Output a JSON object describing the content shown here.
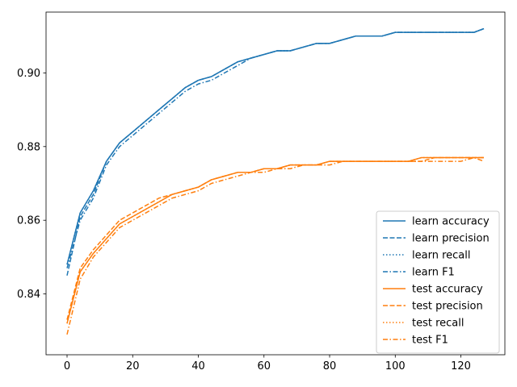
{
  "chart_data": {
    "type": "line",
    "title": "",
    "xlabel": "",
    "ylabel": "",
    "xlim": [
      -6.4,
      133.4
    ],
    "ylim": [
      0.8235,
      0.9165
    ],
    "x_ticks": [
      0,
      20,
      40,
      60,
      80,
      100,
      120
    ],
    "x_tick_labels": [
      "0",
      "20",
      "40",
      "60",
      "80",
      "100",
      "120"
    ],
    "y_ticks": [
      0.84,
      0.86,
      0.88,
      0.9
    ],
    "y_tick_labels": [
      "0.84",
      "0.86",
      "0.88",
      "0.90"
    ],
    "grid": false,
    "legend_position": "lower-right",
    "x": [
      0,
      4,
      8,
      12,
      16,
      20,
      24,
      28,
      32,
      36,
      40,
      44,
      48,
      52,
      56,
      60,
      64,
      68,
      72,
      76,
      80,
      84,
      88,
      92,
      96,
      100,
      104,
      108,
      112,
      116,
      120,
      124,
      127
    ],
    "series": [
      {
        "name": "learn accuracy",
        "color": "#1f77b4",
        "style": "solid",
        "values": [
          0.848,
          0.862,
          0.868,
          0.876,
          0.881,
          0.884,
          0.887,
          0.89,
          0.893,
          0.896,
          0.898,
          0.899,
          0.901,
          0.903,
          0.904,
          0.905,
          0.906,
          0.906,
          0.907,
          0.908,
          0.908,
          0.909,
          0.91,
          0.91,
          0.91,
          0.911,
          0.911,
          0.911,
          0.911,
          0.911,
          0.911,
          0.911,
          0.912
        ]
      },
      {
        "name": "learn precision",
        "color": "#1f77b4",
        "style": "dashed",
        "values": [
          0.845,
          0.861,
          0.867,
          0.876,
          0.881,
          0.884,
          0.887,
          0.89,
          0.893,
          0.896,
          0.898,
          0.899,
          0.901,
          0.903,
          0.904,
          0.905,
          0.906,
          0.906,
          0.907,
          0.908,
          0.908,
          0.909,
          0.91,
          0.91,
          0.91,
          0.911,
          0.911,
          0.911,
          0.911,
          0.911,
          0.911,
          0.911,
          0.912
        ]
      },
      {
        "name": "learn recall",
        "color": "#1f77b4",
        "style": "dotted",
        "values": [
          0.848,
          0.862,
          0.868,
          0.876,
          0.881,
          0.884,
          0.887,
          0.89,
          0.893,
          0.896,
          0.898,
          0.899,
          0.901,
          0.903,
          0.904,
          0.905,
          0.906,
          0.906,
          0.907,
          0.908,
          0.908,
          0.909,
          0.91,
          0.91,
          0.91,
          0.911,
          0.911,
          0.911,
          0.911,
          0.911,
          0.911,
          0.911,
          0.912
        ]
      },
      {
        "name": "learn F1",
        "color": "#1f77b4",
        "style": "dashdot",
        "values": [
          0.847,
          0.86,
          0.866,
          0.875,
          0.88,
          0.883,
          0.886,
          0.889,
          0.892,
          0.895,
          0.897,
          0.898,
          0.9,
          0.902,
          0.904,
          0.905,
          0.906,
          0.906,
          0.907,
          0.908,
          0.908,
          0.909,
          0.91,
          0.91,
          0.91,
          0.911,
          0.911,
          0.911,
          0.911,
          0.911,
          0.911,
          0.911,
          0.912
        ]
      },
      {
        "name": "test accuracy",
        "color": "#ff7f0e",
        "style": "solid",
        "values": [
          0.832,
          0.846,
          0.851,
          0.855,
          0.859,
          0.861,
          0.863,
          0.865,
          0.867,
          0.868,
          0.869,
          0.871,
          0.872,
          0.873,
          0.873,
          0.874,
          0.874,
          0.875,
          0.875,
          0.875,
          0.876,
          0.876,
          0.876,
          0.876,
          0.876,
          0.876,
          0.876,
          0.877,
          0.877,
          0.877,
          0.877,
          0.877,
          0.877
        ]
      },
      {
        "name": "test precision",
        "color": "#ff7f0e",
        "style": "dashed",
        "values": [
          0.833,
          0.847,
          0.852,
          0.856,
          0.86,
          0.862,
          0.864,
          0.866,
          0.867,
          0.868,
          0.869,
          0.871,
          0.872,
          0.873,
          0.873,
          0.874,
          0.874,
          0.875,
          0.875,
          0.875,
          0.876,
          0.876,
          0.876,
          0.876,
          0.876,
          0.876,
          0.876,
          0.876,
          0.877,
          0.877,
          0.877,
          0.877,
          0.877
        ]
      },
      {
        "name": "test recall",
        "color": "#ff7f0e",
        "style": "dotted",
        "values": [
          0.832,
          0.846,
          0.851,
          0.855,
          0.859,
          0.861,
          0.863,
          0.865,
          0.867,
          0.868,
          0.869,
          0.871,
          0.872,
          0.873,
          0.873,
          0.874,
          0.874,
          0.875,
          0.875,
          0.875,
          0.876,
          0.876,
          0.876,
          0.876,
          0.876,
          0.876,
          0.876,
          0.877,
          0.877,
          0.877,
          0.877,
          0.877,
          0.877
        ]
      },
      {
        "name": "test F1",
        "color": "#ff7f0e",
        "style": "dashdot",
        "values": [
          0.829,
          0.844,
          0.85,
          0.854,
          0.858,
          0.86,
          0.862,
          0.864,
          0.866,
          0.867,
          0.868,
          0.87,
          0.871,
          0.872,
          0.873,
          0.873,
          0.874,
          0.874,
          0.875,
          0.875,
          0.875,
          0.876,
          0.876,
          0.876,
          0.876,
          0.876,
          0.876,
          0.876,
          0.876,
          0.876,
          0.876,
          0.877,
          0.876
        ]
      }
    ]
  }
}
